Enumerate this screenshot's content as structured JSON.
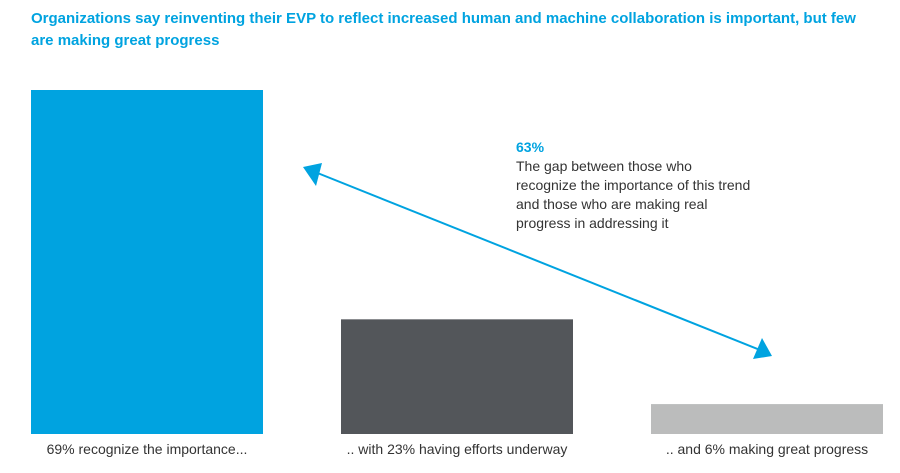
{
  "chart_data": {
    "type": "bar",
    "title": "Organizations say reinventing their EVP to reflect increased human and machine collaboration is important, but few are making great progress",
    "categories": [
      "69% recognize the importance...",
      ".. with 23% having efforts underway",
      ".. and 6% making great progress"
    ],
    "values": [
      69,
      23,
      6
    ],
    "colors": [
      "#00a3e0",
      "#53565a",
      "#bbbcbc"
    ],
    "ylim": [
      0,
      69
    ],
    "grid": false,
    "annotation": {
      "value": "63%",
      "text": "The gap between those who recognize the importance of this trend and those who are making real progress in addressing it",
      "arrow_color": "#00a3e0"
    }
  }
}
